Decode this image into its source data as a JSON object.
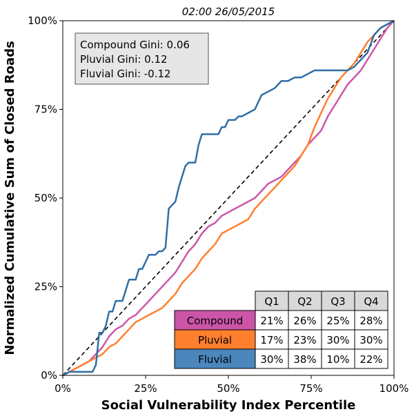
{
  "chart_data": {
    "type": "line",
    "title": "02:00 26/05/2015",
    "xlabel": "Social Vulnerability Index Percentile",
    "ylabel": "Normalized Cumulative Sum of Closed Roads",
    "xlim": [
      0,
      100
    ],
    "ylim": [
      0,
      100
    ],
    "x_ticks": [
      "0%",
      "25%",
      "50%",
      "75%",
      "100%"
    ],
    "y_ticks": [
      "0%",
      "25%",
      "50%",
      "75%",
      "100%"
    ],
    "grid": false,
    "reference_line": {
      "style": "dashed",
      "color": "#000000",
      "points": [
        [
          0,
          0
        ],
        [
          100,
          100
        ]
      ]
    },
    "gini_box": {
      "lines": [
        "Compound Gini: 0.06",
        "Pluvial Gini: 0.12",
        "Fluvial Gini: -0.12"
      ],
      "placement": "top-left"
    },
    "series": [
      {
        "name": "Compound",
        "color": "#CC55A8",
        "points": [
          [
            0,
            0
          ],
          [
            2,
            1
          ],
          [
            4,
            2
          ],
          [
            6,
            3
          ],
          [
            8,
            4
          ],
          [
            10,
            6
          ],
          [
            12,
            8
          ],
          [
            14,
            11
          ],
          [
            16,
            13
          ],
          [
            18,
            14
          ],
          [
            20,
            16
          ],
          [
            22,
            17
          ],
          [
            24,
            19
          ],
          [
            26,
            21
          ],
          [
            28,
            23
          ],
          [
            30,
            25
          ],
          [
            32,
            27
          ],
          [
            34,
            29
          ],
          [
            36,
            32
          ],
          [
            38,
            35
          ],
          [
            40,
            37
          ],
          [
            42,
            40
          ],
          [
            44,
            42
          ],
          [
            46,
            43
          ],
          [
            48,
            45
          ],
          [
            50,
            46
          ],
          [
            52,
            47
          ],
          [
            54,
            48
          ],
          [
            56,
            49
          ],
          [
            58,
            50
          ],
          [
            60,
            52
          ],
          [
            62,
            54
          ],
          [
            64,
            55
          ],
          [
            66,
            56
          ],
          [
            68,
            58
          ],
          [
            70,
            60
          ],
          [
            72,
            62
          ],
          [
            74,
            65
          ],
          [
            76,
            67
          ],
          [
            78,
            69
          ],
          [
            80,
            73
          ],
          [
            82,
            76
          ],
          [
            84,
            79
          ],
          [
            86,
            82
          ],
          [
            88,
            84
          ],
          [
            90,
            86
          ],
          [
            92,
            89
          ],
          [
            94,
            92
          ],
          [
            96,
            95
          ],
          [
            98,
            98
          ],
          [
            100,
            100
          ]
        ]
      },
      {
        "name": "Pluvial",
        "color": "#FF7F2E",
        "points": [
          [
            0,
            0
          ],
          [
            2,
            1
          ],
          [
            4,
            2
          ],
          [
            6,
            3
          ],
          [
            8,
            4
          ],
          [
            10,
            5
          ],
          [
            12,
            6
          ],
          [
            14,
            8
          ],
          [
            16,
            9
          ],
          [
            18,
            11
          ],
          [
            20,
            13
          ],
          [
            22,
            15
          ],
          [
            24,
            16
          ],
          [
            26,
            17
          ],
          [
            28,
            18
          ],
          [
            30,
            19
          ],
          [
            32,
            21
          ],
          [
            34,
            23
          ],
          [
            36,
            26
          ],
          [
            38,
            28
          ],
          [
            40,
            30
          ],
          [
            42,
            33
          ],
          [
            44,
            35
          ],
          [
            46,
            37
          ],
          [
            48,
            40
          ],
          [
            50,
            41
          ],
          [
            52,
            42
          ],
          [
            54,
            43
          ],
          [
            56,
            44
          ],
          [
            58,
            47
          ],
          [
            60,
            49
          ],
          [
            62,
            51
          ],
          [
            64,
            53
          ],
          [
            66,
            55
          ],
          [
            68,
            57
          ],
          [
            70,
            59
          ],
          [
            72,
            62
          ],
          [
            74,
            65
          ],
          [
            76,
            70
          ],
          [
            78,
            74
          ],
          [
            80,
            78
          ],
          [
            82,
            81
          ],
          [
            84,
            84
          ],
          [
            86,
            86
          ],
          [
            88,
            88
          ],
          [
            90,
            91
          ],
          [
            92,
            94
          ],
          [
            94,
            96
          ],
          [
            96,
            98
          ],
          [
            98,
            99
          ],
          [
            100,
            100
          ]
        ]
      },
      {
        "name": "Fluvial",
        "color": "#2F6EA5",
        "points": [
          [
            0,
            0
          ],
          [
            2,
            1
          ],
          [
            4,
            1
          ],
          [
            6,
            1
          ],
          [
            8,
            1
          ],
          [
            9,
            1
          ],
          [
            10,
            3
          ],
          [
            11,
            12
          ],
          [
            12,
            12
          ],
          [
            13,
            14
          ],
          [
            14,
            18
          ],
          [
            15,
            18
          ],
          [
            16,
            21
          ],
          [
            18,
            21
          ],
          [
            19,
            24
          ],
          [
            20,
            27
          ],
          [
            22,
            27
          ],
          [
            23,
            30
          ],
          [
            24,
            30
          ],
          [
            25,
            32
          ],
          [
            26,
            34
          ],
          [
            28,
            34
          ],
          [
            29,
            35
          ],
          [
            30,
            35
          ],
          [
            31,
            36
          ],
          [
            32,
            47
          ],
          [
            33,
            48
          ],
          [
            34,
            49
          ],
          [
            35,
            53
          ],
          [
            36,
            56
          ],
          [
            37,
            59
          ],
          [
            38,
            60
          ],
          [
            40,
            60
          ],
          [
            41,
            65
          ],
          [
            42,
            68
          ],
          [
            44,
            68
          ],
          [
            45,
            68
          ],
          [
            46,
            68
          ],
          [
            47,
            68
          ],
          [
            48,
            70
          ],
          [
            49,
            70
          ],
          [
            50,
            72
          ],
          [
            52,
            72
          ],
          [
            53,
            73
          ],
          [
            54,
            73
          ],
          [
            56,
            74
          ],
          [
            58,
            75
          ],
          [
            59,
            77
          ],
          [
            60,
            79
          ],
          [
            62,
            80
          ],
          [
            64,
            81
          ],
          [
            66,
            83
          ],
          [
            68,
            83
          ],
          [
            70,
            84
          ],
          [
            72,
            84
          ],
          [
            74,
            85
          ],
          [
            76,
            86
          ],
          [
            78,
            86
          ],
          [
            80,
            86
          ],
          [
            82,
            86
          ],
          [
            84,
            86
          ],
          [
            86,
            86
          ],
          [
            88,
            87
          ],
          [
            90,
            89
          ],
          [
            92,
            91
          ],
          [
            94,
            96
          ],
          [
            95,
            97
          ],
          [
            96,
            98
          ],
          [
            98,
            99
          ],
          [
            100,
            100
          ]
        ]
      }
    ],
    "table": {
      "columns": [
        "Q1",
        "Q2",
        "Q3",
        "Q4"
      ],
      "rows": [
        {
          "label": "Compound",
          "color": "#CC55A8",
          "values": [
            "21%",
            "26%",
            "25%",
            "28%"
          ]
        },
        {
          "label": "Pluvial",
          "color": "#FF7F2E",
          "values": [
            "17%",
            "23%",
            "30%",
            "30%"
          ]
        },
        {
          "label": "Fluvial",
          "color": "#4B87BD",
          "values": [
            "30%",
            "38%",
            "10%",
            "22%"
          ]
        }
      ],
      "placement": "bottom-right"
    }
  }
}
